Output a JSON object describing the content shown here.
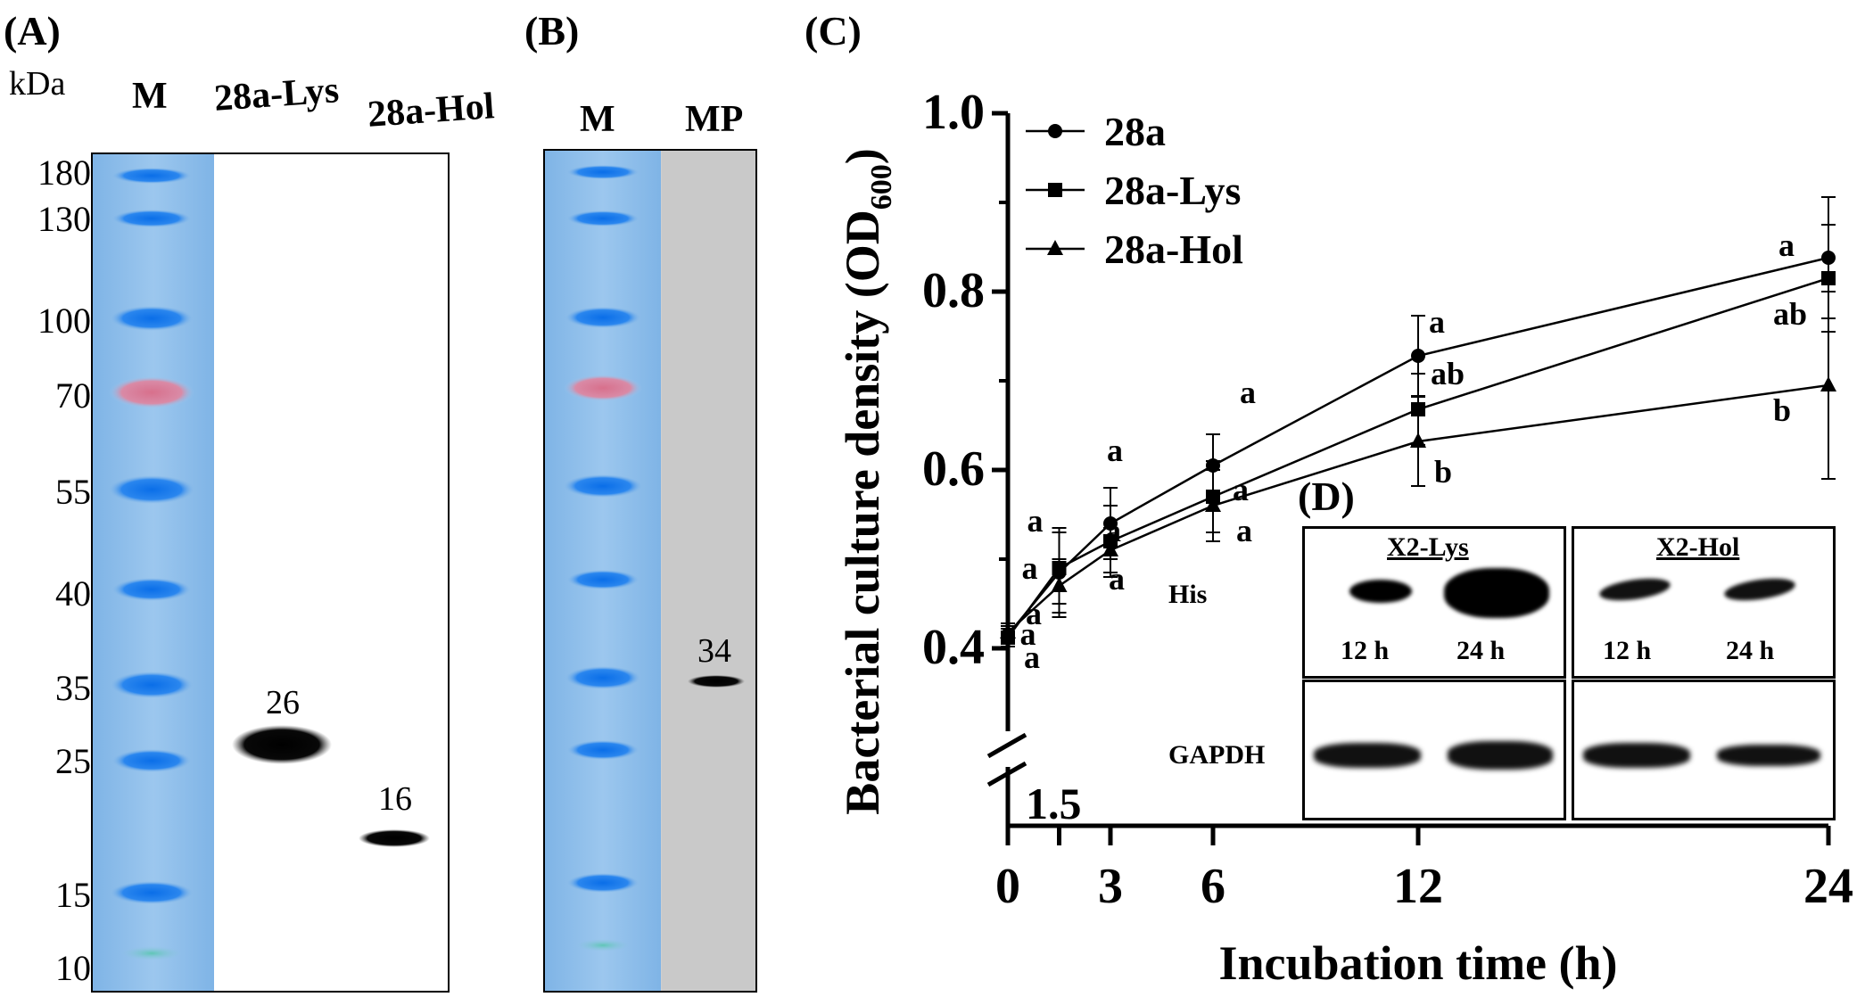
{
  "panels": {
    "a": {
      "label": "(A)",
      "unit": "kDa",
      "lanes": [
        "M",
        "28a-Lys",
        "28a-Hol"
      ],
      "markers": [
        "180",
        "130",
        "100",
        "70",
        "55",
        "40",
        "35",
        "25",
        "15",
        "10"
      ],
      "bands": [
        "26",
        "16"
      ]
    },
    "b": {
      "label": "(B)",
      "lanes": [
        "M",
        "MP"
      ],
      "bands": [
        "34"
      ]
    },
    "c": {
      "label": "(C)",
      "axis_break_label": "1.5"
    },
    "d": {
      "label": "(D)",
      "blot1_title": "X2-Lys",
      "blot2_title": "X2-Hol",
      "row1_label": "His",
      "row2_label": "GAPDH",
      "times": [
        "12 h",
        "24 h",
        "12 h",
        "24 h"
      ]
    }
  },
  "chart_data": {
    "type": "line",
    "title": "",
    "xlabel": "Incubation time (h)",
    "ylabel": "Bacterial culture density (OD600)",
    "ylabel_main": "Bacterial culture density (OD",
    "ylabel_sub": "600",
    "ylabel_close": ")",
    "x": [
      0,
      1.5,
      3,
      6,
      12,
      24
    ],
    "xticks": [
      "0",
      "3",
      "6",
      "12",
      "24"
    ],
    "yticks": [
      "0.4",
      "0.6",
      "0.8",
      "1.0"
    ],
    "ylim": [
      0.4,
      1.0
    ],
    "xlim": [
      0,
      24
    ],
    "legend_position": "top-left",
    "series": [
      {
        "name": "28a",
        "marker": "circle",
        "values": [
          0.415,
          0.485,
          0.54,
          0.605,
          0.728,
          0.838
        ],
        "errors": [
          0.01,
          0.05,
          0.04,
          0.035,
          0.045,
          0.068
        ],
        "letters": [
          "a",
          "a",
          "a",
          "a",
          "a",
          "a"
        ]
      },
      {
        "name": "28a-Lys",
        "marker": "square",
        "values": [
          0.412,
          0.49,
          0.52,
          0.57,
          0.668,
          0.815
        ],
        "errors": [
          0.01,
          0.04,
          0.04,
          0.04,
          0.04,
          0.06
        ],
        "letters": [
          "",
          "a",
          "a",
          "a",
          "ab",
          "ab"
        ]
      },
      {
        "name": "28a-Hol",
        "marker": "triangle",
        "values": [
          0.418,
          0.47,
          0.51,
          0.56,
          0.632,
          0.695
        ],
        "errors": [
          0.01,
          0.03,
          0.025,
          0.04,
          0.05,
          0.105
        ],
        "letters": [
          "a",
          "a",
          "a",
          "a",
          "b",
          "b"
        ]
      }
    ]
  }
}
